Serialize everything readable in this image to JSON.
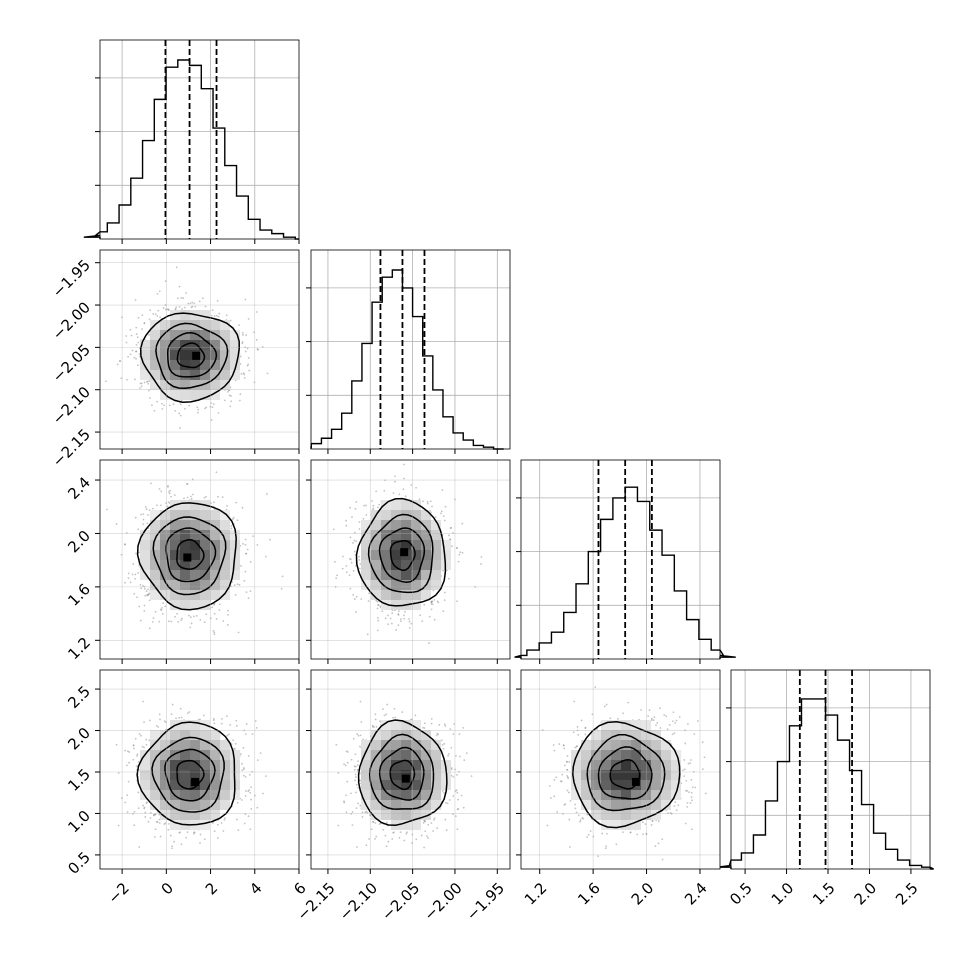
{
  "chart_data": {
    "type": "corner",
    "grid": true,
    "parameters": [
      {
        "range": [
          -3,
          6
        ],
        "ticks": [
          -2,
          0,
          2,
          4,
          6
        ],
        "tick_labels": [
          "−2",
          "0",
          "2",
          "4",
          "6"
        ]
      },
      {
        "range": [
          -2.17,
          -1.935
        ],
        "ticks": [
          -2.15,
          -2.1,
          -2.05,
          -2.0,
          -1.95
        ],
        "tick_labels": [
          "−2.15",
          "−2.10",
          "−2.05",
          "−2.00",
          "−1.95"
        ]
      },
      {
        "range": [
          1.06,
          2.55
        ],
        "ticks": [
          1.2,
          1.6,
          2.0,
          2.4
        ],
        "tick_labels": [
          "1.2",
          "1.6",
          "2.0",
          "2.4"
        ]
      },
      {
        "range": [
          0.33,
          2.73
        ],
        "ticks": [
          0.5,
          1.0,
          1.5,
          2.0,
          2.5
        ],
        "tick_labels": [
          "0.5",
          "1.0",
          "1.5",
          "2.0",
          "2.5"
        ]
      }
    ],
    "marginals": [
      {
        "quantiles": [
          -0.04,
          1.05,
          2.27
        ],
        "counts": [
          0.01,
          0.02,
          0.04,
          0.09,
          0.19,
          0.34,
          0.55,
          0.78,
          0.96,
          1.0,
          0.97,
          0.84,
          0.62,
          0.41,
          0.24,
          0.11,
          0.05,
          0.03,
          0.01,
          0.0
        ]
      },
      {
        "quantiles": [
          -2.088,
          -2.062,
          -2.036
        ],
        "counts": [
          0.01,
          0.03,
          0.06,
          0.11,
          0.2,
          0.38,
          0.59,
          0.82,
          0.96,
          1.0,
          0.9,
          0.74,
          0.52,
          0.33,
          0.18,
          0.09,
          0.05,
          0.02,
          0.01,
          0.0
        ]
      },
      {
        "quantiles": [
          1.64,
          1.84,
          2.04
        ],
        "counts": [
          0.01,
          0.02,
          0.05,
          0.09,
          0.15,
          0.26,
          0.42,
          0.6,
          0.78,
          0.9,
          0.96,
          0.88,
          0.72,
          0.58,
          0.38,
          0.22,
          0.11,
          0.05,
          0.02,
          0.01
        ]
      },
      {
        "quantiles": [
          1.16,
          1.47,
          1.79
        ],
        "counts": [
          0.01,
          0.02,
          0.05,
          0.09,
          0.19,
          0.38,
          0.6,
          0.8,
          0.95,
          0.95,
          0.86,
          0.72,
          0.55,
          0.36,
          0.2,
          0.11,
          0.05,
          0.02,
          0.01,
          0.0
        ]
      }
    ],
    "joint": [
      {
        "x_param": 0,
        "y_param": 1,
        "center": [
          1.1,
          -2.06
        ],
        "sigma": [
          1.1,
          0.026
        ],
        "contour_levels": [
          0.55,
          1.0,
          1.45,
          2.0
        ],
        "peak": [
          1.35,
          -2.06
        ]
      },
      {
        "x_param": 0,
        "y_param": 2,
        "center": [
          1.05,
          1.84
        ],
        "sigma": [
          1.1,
          0.2
        ],
        "contour_levels": [
          0.55,
          1.0,
          1.45,
          2.0
        ],
        "peak": [
          0.95,
          1.82
        ]
      },
      {
        "x_param": 0,
        "y_param": 3,
        "center": [
          1.05,
          1.47
        ],
        "sigma": [
          1.1,
          0.31
        ],
        "contour_levels": [
          0.55,
          1.0,
          1.45,
          2.0
        ],
        "peak": [
          1.3,
          1.38
        ]
      },
      {
        "x_param": 1,
        "y_param": 2,
        "center": [
          -2.062,
          1.84
        ],
        "sigma": [
          0.026,
          0.2
        ],
        "contour_levels": [
          0.55,
          1.0,
          1.45,
          2.0
        ],
        "peak": [
          -2.06,
          1.86
        ]
      },
      {
        "x_param": 1,
        "y_param": 3,
        "center": [
          -2.062,
          1.47
        ],
        "sigma": [
          0.026,
          0.31
        ],
        "contour_levels": [
          0.55,
          1.0,
          1.45,
          2.0
        ],
        "peak": [
          -2.058,
          1.42
        ]
      },
      {
        "x_param": 2,
        "y_param": 3,
        "center": [
          1.84,
          1.47
        ],
        "sigma": [
          0.2,
          0.31
        ],
        "contour_levels": [
          0.55,
          1.0,
          1.45,
          2.0
        ],
        "peak": [
          1.92,
          1.38
        ]
      }
    ]
  }
}
